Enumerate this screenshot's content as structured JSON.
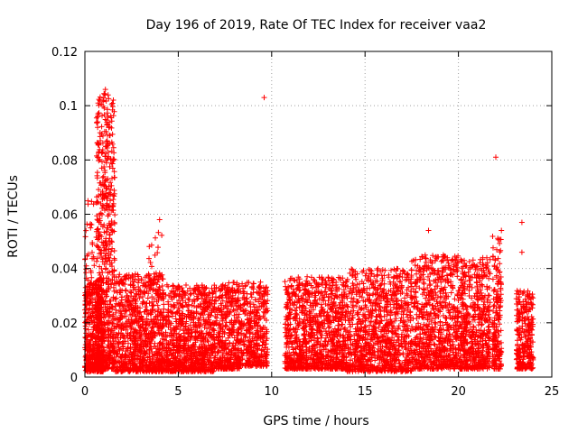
{
  "chart_data": {
    "type": "scatter",
    "title": "Day 196 of 2019, Rate Of TEC Index for receiver vaa2",
    "xlabel": "GPS time / hours",
    "ylabel": "ROTI / TECUs",
    "xlim": [
      0,
      25
    ],
    "ylim": [
      0,
      0.12
    ],
    "xticks": [
      "0",
      "5",
      "10",
      "15",
      "20",
      "25"
    ],
    "yticks": [
      "0",
      "0.02",
      "0.04",
      "0.06",
      "0.08",
      "0.1",
      "0.12"
    ],
    "grid": true,
    "marker": "+",
    "color": "#ff0000",
    "series": [
      {
        "name": "ROTI",
        "segments": [
          {
            "x_start": 0.0,
            "x_end": 1.0,
            "y_min": 0.002,
            "y_max": 0.035,
            "n": 450
          },
          {
            "x_start": 0.0,
            "x_end": 0.5,
            "y_min": 0.03,
            "y_max": 0.066,
            "n": 40
          },
          {
            "x_start": 0.6,
            "x_end": 1.6,
            "y_min": 0.003,
            "y_max": 0.105,
            "n": 650
          },
          {
            "x_start": 1.6,
            "x_end": 4.2,
            "y_min": 0.002,
            "y_max": 0.038,
            "n": 850
          },
          {
            "x_start": 3.4,
            "x_end": 4.2,
            "y_min": 0.03,
            "y_max": 0.054,
            "n": 25
          },
          {
            "x_start": 4.2,
            "x_end": 7.0,
            "y_min": 0.002,
            "y_max": 0.034,
            "n": 900
          },
          {
            "x_start": 7.0,
            "x_end": 8.3,
            "y_min": 0.003,
            "y_max": 0.035,
            "n": 400
          },
          {
            "x_start": 8.3,
            "x_end": 9.8,
            "y_min": 0.004,
            "y_max": 0.035,
            "n": 380
          },
          {
            "x_start": 10.7,
            "x_end": 14.0,
            "y_min": 0.003,
            "y_max": 0.037,
            "n": 1000
          },
          {
            "x_start": 14.0,
            "x_end": 17.5,
            "y_min": 0.002,
            "y_max": 0.04,
            "n": 1000
          },
          {
            "x_start": 17.5,
            "x_end": 20.0,
            "y_min": 0.003,
            "y_max": 0.045,
            "n": 750
          },
          {
            "x_start": 20.0,
            "x_end": 21.7,
            "y_min": 0.003,
            "y_max": 0.044,
            "n": 550
          },
          {
            "x_start": 21.8,
            "x_end": 22.3,
            "y_min": 0.003,
            "y_max": 0.052,
            "n": 180
          },
          {
            "x_start": 23.1,
            "x_end": 24.0,
            "y_min": 0.003,
            "y_max": 0.032,
            "n": 280
          }
        ],
        "outliers": [
          {
            "x": 9.6,
            "y": 0.103
          },
          {
            "x": 22.0,
            "y": 0.081
          },
          {
            "x": 23.4,
            "y": 0.057
          },
          {
            "x": 23.4,
            "y": 0.046
          },
          {
            "x": 4.0,
            "y": 0.058
          },
          {
            "x": 1.1,
            "y": 0.106
          },
          {
            "x": 18.4,
            "y": 0.054
          },
          {
            "x": 22.3,
            "y": 0.054
          }
        ]
      }
    ]
  }
}
